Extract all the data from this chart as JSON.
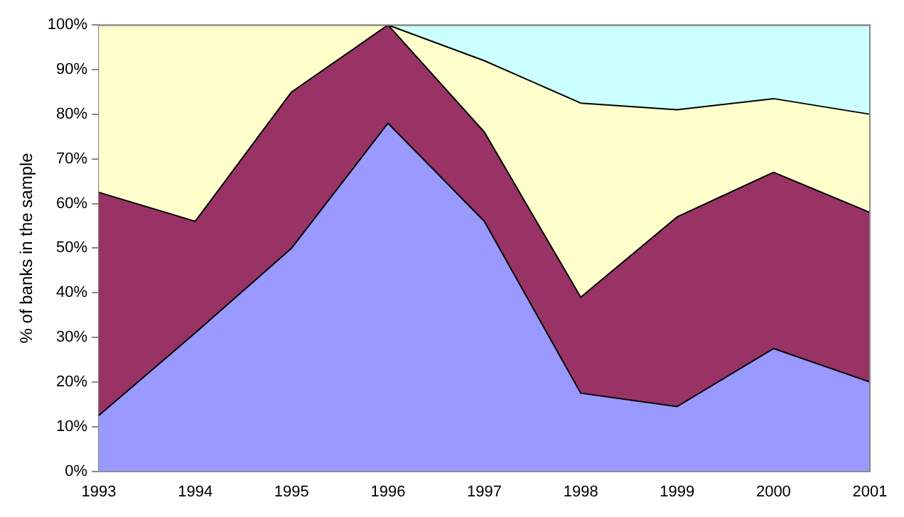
{
  "chart_data": {
    "type": "area",
    "stacked": true,
    "ylabel": "% of banks in the sample",
    "categories": [
      "1993",
      "1994",
      "1995",
      "1996",
      "1997",
      "1998",
      "1999",
      "2000",
      "2001"
    ],
    "series": [
      {
        "color": "#9999ff",
        "values": [
          12.5,
          31,
          50,
          78,
          56,
          17.5,
          14.5,
          27.5,
          20
        ]
      },
      {
        "color": "#993366",
        "values": [
          50,
          25,
          35,
          22,
          20,
          21.5,
          42.5,
          39.5,
          38
        ]
      },
      {
        "color": "#ffffcc",
        "values": [
          37.5,
          44,
          15,
          0,
          16,
          43.5,
          24,
          16.5,
          22
        ]
      },
      {
        "color": "#ccffff",
        "values": [
          0,
          0,
          0,
          0,
          8,
          17.5,
          19,
          16.5,
          20
        ]
      }
    ],
    "ylim": [
      0,
      100
    ],
    "yticks": [
      {
        "value": 0,
        "label": "0%"
      },
      {
        "value": 10,
        "label": "10%"
      },
      {
        "value": 20,
        "label": "20%"
      },
      {
        "value": 30,
        "label": "30%"
      },
      {
        "value": 40,
        "label": "40%"
      },
      {
        "value": 50,
        "label": "50%"
      },
      {
        "value": 60,
        "label": "60%"
      },
      {
        "value": 70,
        "label": "70%"
      },
      {
        "value": 80,
        "label": "80%"
      },
      {
        "value": 90,
        "label": "90%"
      },
      {
        "value": 100,
        "label": "100%"
      }
    ],
    "grid": false,
    "legend": false
  }
}
